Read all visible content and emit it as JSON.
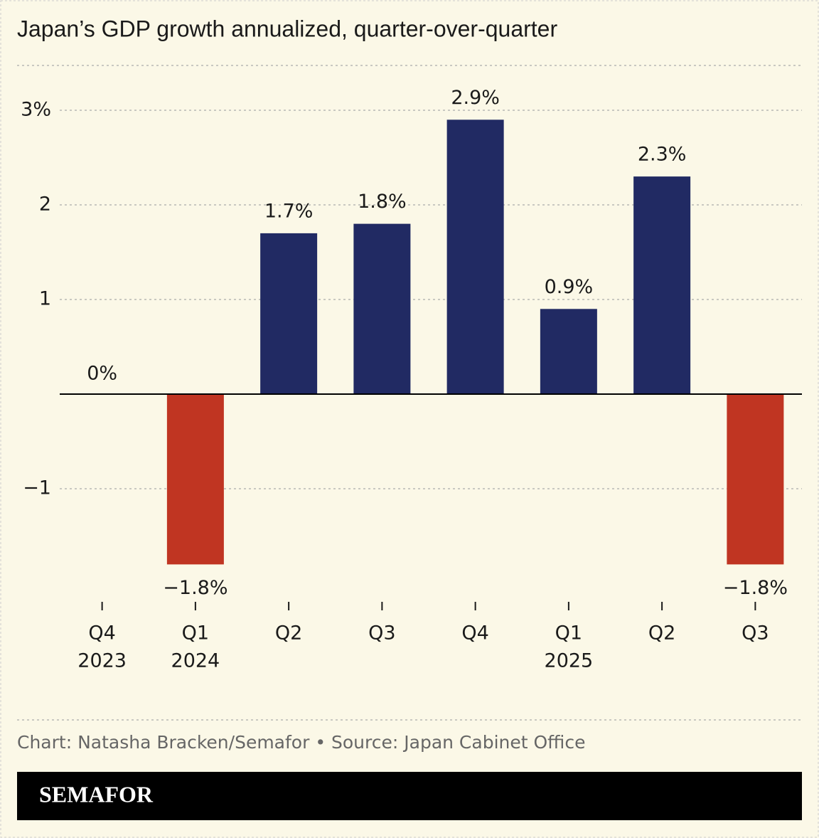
{
  "chart_data": {
    "type": "bar",
    "title": "Japan’s GDP growth annualized, quarter-over-quarter",
    "categories": [
      "Q4",
      "Q1",
      "Q2",
      "Q3",
      "Q4",
      "Q1",
      "Q2",
      "Q3"
    ],
    "years": [
      "2023",
      "2024",
      null,
      null,
      null,
      "2025",
      null,
      null
    ],
    "values": [
      0,
      -1.8,
      1.7,
      1.8,
      2.9,
      0.9,
      2.3,
      -1.8
    ],
    "value_labels": [
      "0%",
      "−1.8%",
      "1.7%",
      "1.8%",
      "2.9%",
      "0.9%",
      "2.3%",
      "−1.8%"
    ],
    "color": "#212a63",
    "negative_color": "#c03522",
    "ylim": [
      -2,
      3
    ],
    "yticks": [
      {
        "value": 3,
        "label": "3%"
      },
      2,
      1,
      {
        "value": -1,
        "label": "−1"
      }
    ],
    "grid": true,
    "source": "Chart: Natasha Bracken/Semafor • Source: Japan Cabinet Office",
    "brand": "SEMAFOR"
  }
}
